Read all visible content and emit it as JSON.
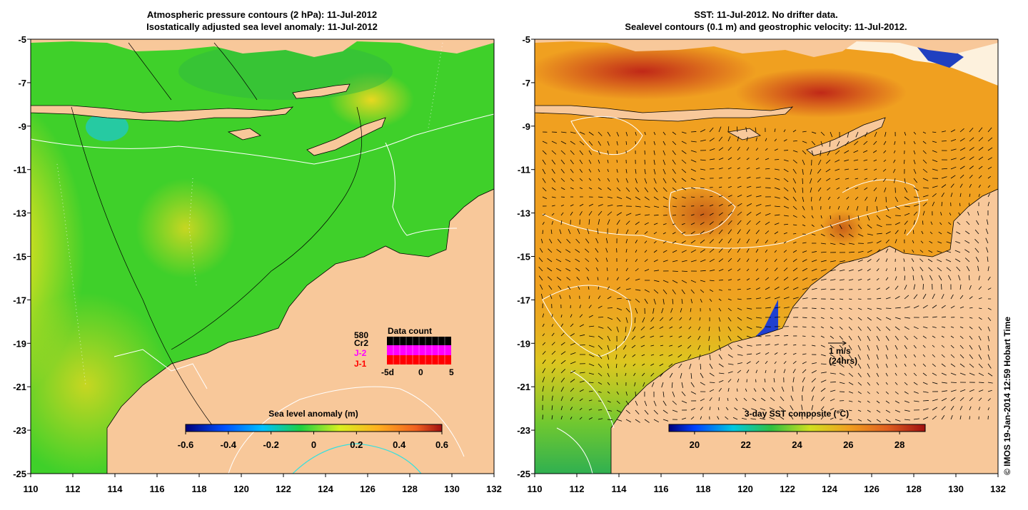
{
  "left_panel": {
    "title_line1": "Atmospheric pressure contours (2 hPa): 11-Jul-2012",
    "title_line2": "Isostatically adjusted sea level anomaly: 11-Jul-2012",
    "colorbar_title": "Sea level anomaly (m)",
    "colorbar_ticks": [
      "-0.6",
      "-0.4",
      "-0.2",
      "0",
      "0.2",
      "0.4",
      "0.6"
    ],
    "colorbar_range": [
      -0.6,
      0.6
    ],
    "legend": {
      "count_label": "580",
      "satellites": [
        "Cr2",
        "J-2",
        "J-1"
      ],
      "satellite_colors": [
        "#000000",
        "#ff00ff",
        "#ff0000"
      ],
      "chart_title": "Data count",
      "axis_ticks": [
        "-5d",
        "0",
        "5"
      ]
    }
  },
  "right_panel": {
    "title_line1": "SST: 11-Jul-2012. No drifter data.",
    "title_line2": "Sealevel contours (0.1 m) and geostrophic velocity: 11-Jul-2012.",
    "colorbar_title": "3-day SST composite (°C)",
    "colorbar_ticks": [
      "20",
      "22",
      "24",
      "26",
      "28"
    ],
    "colorbar_range": [
      19,
      29
    ],
    "scale_arrow_label1": "1 m/s",
    "scale_arrow_label2": "(24hrs)"
  },
  "axes": {
    "lon_ticks": [
      "110",
      "112",
      "114",
      "116",
      "118",
      "120",
      "122",
      "124",
      "126",
      "128",
      "130",
      "132"
    ],
    "lat_ticks": [
      "-5",
      "-7",
      "-9",
      "-11",
      "-13",
      "-15",
      "-17",
      "-19",
      "-21",
      "-23",
      "-25"
    ],
    "lon_range": [
      110,
      132
    ],
    "lat_range": [
      -25,
      -5
    ]
  },
  "credit": "© IMOS 19-Jan-2014 12:59 Hobart Time",
  "colors": {
    "land": "#f8c89a",
    "sla_ocean": "#3fd02a",
    "sst_ocean": "#f0a020"
  }
}
